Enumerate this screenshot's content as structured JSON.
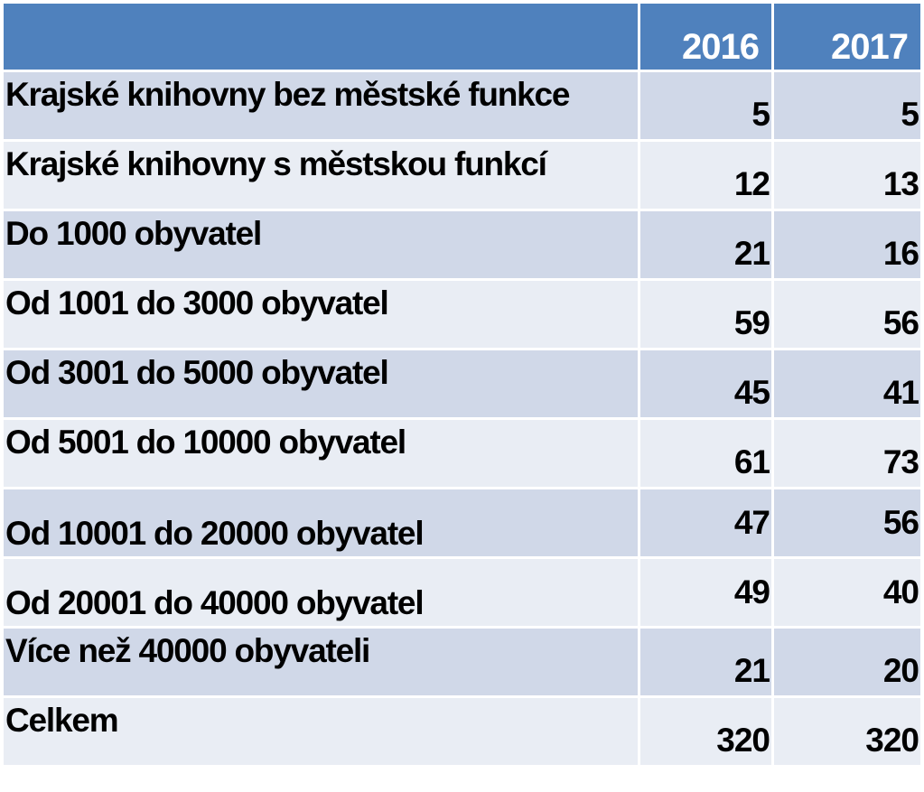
{
  "table": {
    "headers": [
      "",
      "2016",
      "2017"
    ],
    "rows": [
      {
        "label": "Krajské knihovny bez městské funkce",
        "y2016": "5",
        "y2017": "5"
      },
      {
        "label": "Krajské knihovny s městskou funkcí",
        "y2016": "12",
        "y2017": "13"
      },
      {
        "label": "Do 1000 obyvatel",
        "y2016": "21",
        "y2017": "16"
      },
      {
        "label": "Od 1001 do 3000 obyvatel",
        "y2016": "59",
        "y2017": "56"
      },
      {
        "label": "Od 3001 do 5000 obyvatel",
        "y2016": "45",
        "y2017": "41"
      },
      {
        "label": "Od 5001 do 10000 obyvatel",
        "y2016": "61",
        "y2017": "73"
      },
      {
        "label": "Od 10001 do 20000 obyvatel",
        "y2016": "47",
        "y2017": "56"
      },
      {
        "label": "Od 20001 do 40000 obyvatel",
        "y2016": "49",
        "y2017": "40"
      },
      {
        "label": "Více než 40000 obyvateli",
        "y2016": "21",
        "y2017": "20"
      },
      {
        "label": "Celkem",
        "y2016": "320",
        "y2017": "320"
      }
    ]
  },
  "colors": {
    "header": "#4f81bd",
    "row_odd": "#d0d8e8",
    "row_even": "#e9edf4"
  }
}
